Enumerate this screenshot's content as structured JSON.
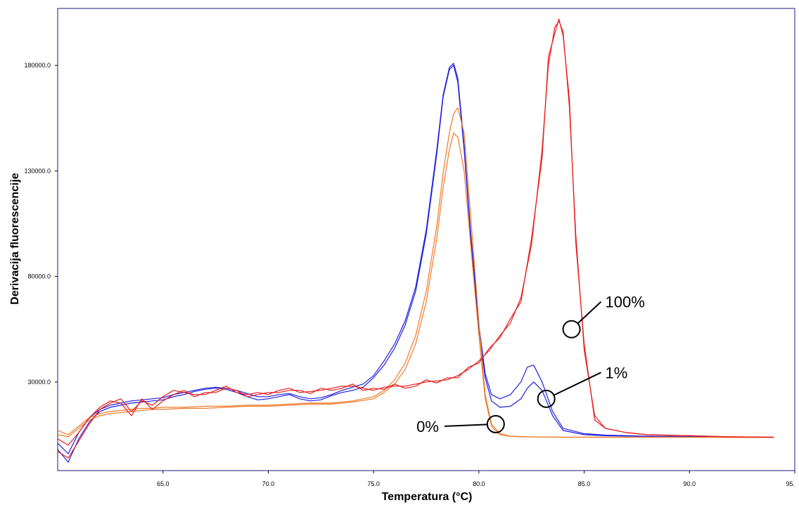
{
  "chart_data": {
    "type": "line",
    "xlabel": "Temperatura (°C)",
    "ylabel": "Derivacija fluorescencije",
    "xlim": [
      60.0,
      95.0
    ],
    "ylim": [
      -12000,
      207000
    ],
    "x_ticks": [
      65.0,
      70.0,
      75.0,
      80.0,
      85.0,
      90.0,
      95.0
    ],
    "x_tick_labels": [
      "65.0",
      "70.0",
      "75.0",
      "80.0",
      "85.0",
      "90.0",
      "95."
    ],
    "y_ticks": [
      30000,
      80000,
      130000,
      180000
    ],
    "y_tick_labels": [
      "30000.0",
      "80000.0",
      "130000.0",
      "180000.0"
    ],
    "grid": false,
    "legend": "none",
    "colors": {
      "blue": "#1f1fe0",
      "orange": "#f07a2a",
      "red": "#e81c1c",
      "frame": "#1a1a80"
    },
    "series": [
      {
        "color": "blue",
        "x": [
          60.0,
          60.5,
          61.0,
          61.5,
          62.0,
          62.5,
          63.0,
          63.5,
          64.0,
          64.5,
          65.0,
          65.5,
          66.0,
          66.5,
          67.0,
          67.5,
          68.0,
          68.5,
          69.0,
          69.5,
          70.0,
          70.5,
          71.0,
          71.5,
          72.0,
          72.5,
          73.0,
          73.5,
          74.0,
          74.5,
          75.0,
          75.5,
          76.0,
          76.5,
          77.0,
          77.5,
          78.0,
          78.3,
          78.6,
          78.8,
          79.0,
          79.3,
          79.6,
          80.0,
          80.3,
          80.6,
          81.0,
          81.5,
          82.0,
          82.3,
          82.6,
          83.0,
          83.5,
          84.0,
          85.0,
          86.0,
          88.0,
          90.0,
          92.0,
          94.0
        ],
        "y": [
          -2000,
          -8000,
          3000,
          11000,
          16000,
          18000,
          19000,
          20000,
          20500,
          21000,
          21500,
          23000,
          24000,
          25500,
          26500,
          27000,
          26500,
          25000,
          23000,
          21500,
          22000,
          23000,
          24000,
          22000,
          21000,
          21500,
          23500,
          25000,
          26000,
          27500,
          32000,
          38000,
          46000,
          57000,
          73000,
          100000,
          138000,
          165000,
          178000,
          180000,
          172000,
          140000,
          100000,
          55000,
          32000,
          21000,
          18000,
          18500,
          22000,
          27000,
          30000,
          26000,
          14000,
          7000,
          5000,
          4500,
          4200,
          4000,
          3800,
          3700
        ]
      },
      {
        "color": "blue",
        "x": [
          60.0,
          60.5,
          61.0,
          61.5,
          62.0,
          62.5,
          63.0,
          63.5,
          64.0,
          64.5,
          65.0,
          65.5,
          66.0,
          66.5,
          67.0,
          67.5,
          68.0,
          68.5,
          69.0,
          69.5,
          70.0,
          70.5,
          71.0,
          71.5,
          72.0,
          72.5,
          73.0,
          73.5,
          74.0,
          74.5,
          75.0,
          75.5,
          76.0,
          76.5,
          77.0,
          77.5,
          78.0,
          78.3,
          78.6,
          78.8,
          79.0,
          79.3,
          79.6,
          80.0,
          80.3,
          80.6,
          81.0,
          81.5,
          82.0,
          82.3,
          82.6,
          83.0,
          83.5,
          84.0,
          85.0,
          86.0,
          88.0,
          90.0,
          92.0,
          94.0
        ],
        "y": [
          1000,
          -4000,
          6000,
          13000,
          17000,
          19000,
          20000,
          21000,
          21500,
          22000,
          22500,
          24000,
          25000,
          26000,
          27000,
          27500,
          27000,
          26000,
          24500,
          23000,
          23000,
          24000,
          24500,
          23000,
          22000,
          22500,
          24000,
          26000,
          27500,
          29000,
          33000,
          40000,
          48000,
          59000,
          75000,
          102000,
          140000,
          166000,
          179000,
          181000,
          174000,
          142000,
          102000,
          57000,
          34000,
          24000,
          22000,
          24000,
          30000,
          37000,
          38000,
          30000,
          16000,
          8000,
          5500,
          4800,
          4300,
          4100,
          3900,
          3800
        ]
      },
      {
        "color": "orange",
        "x": [
          60.0,
          60.5,
          61.0,
          61.5,
          62.0,
          62.5,
          63.0,
          63.5,
          64.0,
          64.5,
          65.0,
          66.0,
          67.0,
          68.0,
          69.0,
          70.0,
          71.0,
          72.0,
          73.0,
          74.0,
          75.0,
          75.5,
          76.0,
          76.5,
          77.0,
          77.5,
          78.0,
          78.3,
          78.6,
          78.8,
          79.0,
          79.3,
          79.6,
          80.0,
          80.3,
          80.6,
          81.0,
          81.5,
          82.0,
          83.0,
          84.0,
          86.0,
          88.0,
          90.0,
          92.0,
          94.0
        ],
        "y": [
          5000,
          4000,
          8000,
          12000,
          14000,
          15000,
          15500,
          16000,
          16500,
          17000,
          17000,
          17500,
          17500,
          18000,
          18500,
          18500,
          19000,
          19500,
          19500,
          20500,
          22000,
          25000,
          29000,
          36000,
          48000,
          68000,
          98000,
          122000,
          140000,
          148000,
          146000,
          130000,
          96000,
          52000,
          22000,
          9000,
          5000,
          4200,
          4000,
          3900,
          3800,
          3800,
          3800,
          3800,
          3700,
          3700
        ]
      },
      {
        "color": "orange",
        "x": [
          60.0,
          60.5,
          61.0,
          61.5,
          62.0,
          62.5,
          63.0,
          63.5,
          64.0,
          64.5,
          65.0,
          66.0,
          67.0,
          68.0,
          69.0,
          70.0,
          71.0,
          72.0,
          73.0,
          74.0,
          75.0,
          75.5,
          76.0,
          76.5,
          77.0,
          77.5,
          78.0,
          78.3,
          78.6,
          78.8,
          79.0,
          79.3,
          79.6,
          80.0,
          80.3,
          80.6,
          81.0,
          81.5,
          82.0,
          83.0,
          84.0,
          86.0,
          88.0,
          90.0,
          92.0,
          94.0
        ],
        "y": [
          7000,
          5000,
          9000,
          13000,
          15000,
          16000,
          16500,
          17000,
          17500,
          17500,
          18000,
          18000,
          18500,
          18500,
          19000,
          19000,
          19500,
          20000,
          20000,
          21000,
          23000,
          26000,
          31000,
          39000,
          52000,
          73000,
          104000,
          129000,
          148000,
          157000,
          160000,
          148000,
          110000,
          58000,
          24000,
          10000,
          5500,
          4300,
          4100,
          3900,
          3800,
          3800,
          3800,
          3800,
          3700,
          3700
        ]
      },
      {
        "color": "red",
        "x": [
          60.0,
          60.5,
          61.0,
          61.5,
          62.0,
          62.5,
          63.0,
          63.5,
          64.0,
          64.5,
          65.0,
          65.5,
          66.0,
          66.5,
          67.0,
          67.5,
          68.0,
          68.5,
          69.0,
          69.5,
          70.0,
          70.5,
          71.0,
          71.5,
          72.0,
          72.5,
          73.0,
          73.5,
          74.0,
          74.5,
          75.0,
          75.5,
          76.0,
          76.5,
          77.0,
          77.5,
          78.0,
          78.5,
          79.0,
          79.5,
          80.0,
          80.5,
          81.0,
          81.5,
          82.0,
          82.5,
          83.0,
          83.3,
          83.6,
          83.8,
          84.0,
          84.3,
          84.6,
          85.0,
          85.5,
          86.0,
          87.0,
          88.0,
          90.0,
          92.0,
          94.0
        ],
        "y": [
          -3000,
          -6000,
          2000,
          10000,
          17000,
          20000,
          22000,
          16000,
          21000,
          19000,
          23000,
          26000,
          25000,
          24000,
          24000,
          26000,
          28000,
          25000,
          24000,
          25000,
          24000,
          26000,
          27000,
          25000,
          25500,
          26000,
          27000,
          28000,
          28000,
          27000,
          26000,
          27500,
          28000,
          28000,
          29000,
          30000,
          30500,
          31000,
          33000,
          36000,
          40000,
          45000,
          52000,
          58000,
          70000,
          95000,
          140000,
          180000,
          198000,
          201000,
          196000,
          160000,
          100000,
          45000,
          14000,
          8000,
          6000,
          5000,
          4500,
          4000,
          3800
        ]
      },
      {
        "color": "red",
        "x": [
          60.0,
          60.5,
          61.0,
          61.5,
          62.0,
          62.5,
          63.0,
          63.5,
          64.0,
          64.5,
          65.0,
          65.5,
          66.0,
          66.5,
          67.0,
          67.5,
          68.0,
          68.5,
          69.0,
          69.5,
          70.0,
          70.5,
          71.0,
          71.5,
          72.0,
          72.5,
          73.0,
          73.5,
          74.0,
          74.5,
          75.0,
          75.5,
          76.0,
          76.5,
          77.0,
          77.5,
          78.0,
          78.5,
          79.0,
          79.5,
          80.0,
          80.5,
          81.0,
          81.5,
          82.0,
          82.5,
          83.0,
          83.3,
          83.6,
          83.8,
          84.0,
          84.3,
          84.6,
          85.0,
          85.5,
          86.0,
          87.0,
          88.0,
          90.0,
          92.0,
          94.0
        ],
        "y": [
          3000,
          0,
          6000,
          13000,
          18000,
          21000,
          20000,
          14000,
          22000,
          17000,
          21000,
          24000,
          26000,
          23000,
          25000,
          25000,
          27000,
          26000,
          23000,
          24000,
          25000,
          25000,
          26000,
          26000,
          24500,
          27000,
          26000,
          27000,
          29000,
          26000,
          27000,
          26500,
          29000,
          27000,
          28000,
          31000,
          29500,
          32000,
          32000,
          37000,
          39000,
          46000,
          51000,
          60000,
          68000,
          98000,
          136000,
          184000,
          195000,
          202000,
          194000,
          164000,
          96000,
          48000,
          12000,
          8000,
          6000,
          5000,
          4500,
          4000,
          3800
        ]
      }
    ],
    "annotations": [
      {
        "label": "100%",
        "target": [
          84.4,
          55000
        ],
        "text_at": [
          86.0,
          68000
        ]
      },
      {
        "label": "1%",
        "target": [
          83.2,
          22000
        ],
        "text_at": [
          86.0,
          34500
        ]
      },
      {
        "label": "0%",
        "target": [
          80.8,
          10000
        ],
        "text_at": [
          78.1,
          9000
        ]
      }
    ]
  }
}
